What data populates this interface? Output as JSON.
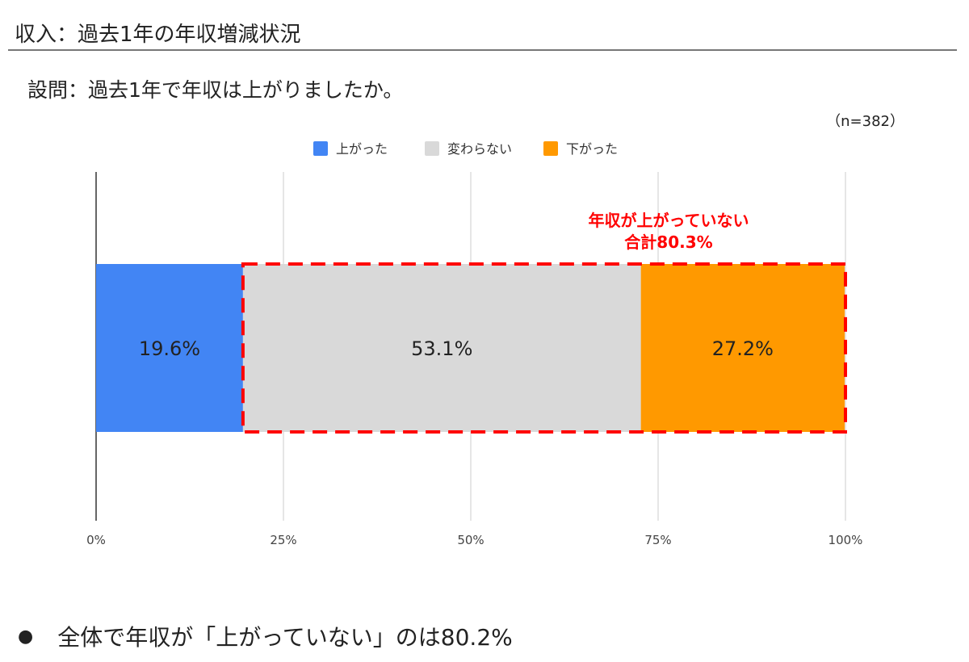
{
  "header": {
    "title": "収入：過去1年の年収増減状況"
  },
  "question": "設問：過去1年で年収は上がりましたか。",
  "sample": "（n=382）",
  "chart_data": {
    "type": "bar",
    "orientation": "horizontal-stacked-100",
    "categories": [
      ""
    ],
    "series": [
      {
        "name": "上がった",
        "values": [
          19.6
        ],
        "color": "#4285f4",
        "label": "19.6%"
      },
      {
        "name": "変わらない",
        "values": [
          53.1
        ],
        "color": "#d9d9d9",
        "label": "53.1%"
      },
      {
        "name": "下がった",
        "values": [
          27.2
        ],
        "color": "#ff9900",
        "label": "27.2%"
      }
    ],
    "xlim": [
      0,
      100
    ],
    "xticks": [
      0,
      25,
      50,
      75,
      100
    ],
    "xtick_labels": [
      "0%",
      "25%",
      "50%",
      "75%",
      "100%"
    ],
    "grid": true,
    "legend": "top-center",
    "annotation": {
      "line1": "年収が上がっていない",
      "line2": "合計80.3%",
      "color": "#ff0000"
    }
  },
  "footer": {
    "bullet": "●",
    "text": "全体で年収が「上がっていない」のは80.2%"
  }
}
